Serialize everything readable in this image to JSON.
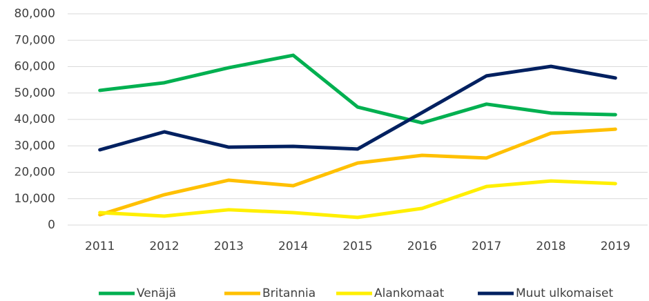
{
  "chart_data": {
    "type": "line",
    "categories": [
      "2011",
      "2012",
      "2013",
      "2014",
      "2015",
      "2016",
      "2017",
      "2018",
      "2019"
    ],
    "series": [
      {
        "name": "Venäjä",
        "color": "#00b050",
        "values": [
          51000,
          53900,
          59600,
          64300,
          44700,
          38700,
          45800,
          42400,
          41800
        ]
      },
      {
        "name": "Britannia",
        "color": "#ffc000",
        "values": [
          3900,
          11500,
          17000,
          14900,
          23500,
          26400,
          25400,
          34800,
          36300
        ]
      },
      {
        "name": "Alankomaat",
        "color": "#ffef00",
        "values": [
          4700,
          3400,
          5800,
          4700,
          2900,
          6300,
          14600,
          16700,
          15700
        ]
      },
      {
        "name": "Muut ulkomaiset",
        "color": "#002060",
        "values": [
          28500,
          35300,
          29500,
          29800,
          28800,
          42600,
          56500,
          60100,
          55700
        ]
      }
    ],
    "ylim": [
      0,
      80000
    ],
    "yticks": [
      0,
      {
        "value": 10000,
        "label": "10,000"
      },
      {
        "value": 20000,
        "label": "20,000"
      },
      {
        "value": 30000,
        "label": "30,000"
      },
      {
        "value": 40000,
        "label": "40,000"
      },
      {
        "value": 50000,
        "label": "50,000"
      },
      {
        "value": 60000,
        "label": "60,000"
      },
      {
        "value": 70000,
        "label": "70,000"
      },
      {
        "value": 80000,
        "label": "80,000"
      }
    ],
    "grid": true,
    "legend": "bottom"
  }
}
